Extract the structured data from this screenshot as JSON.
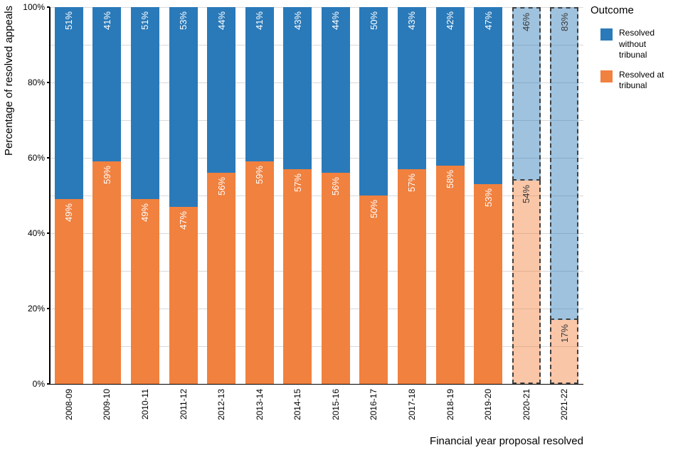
{
  "chart_data": {
    "type": "bar",
    "stacked": true,
    "title": "",
    "xlabel": "Financial year proposal resolved",
    "ylabel": "Percentage of resolved appeals",
    "legend_title": "Outcome",
    "legend_position": "right",
    "categories": [
      "2008-09",
      "2009-10",
      "2010-11",
      "2011-12",
      "2012-13",
      "2013-14",
      "2014-15",
      "2015-16",
      "2016-17",
      "2017-18",
      "2018-19",
      "2019-20",
      "2020-21",
      "2021-22"
    ],
    "series": [
      {
        "name": "Resolved without tribunal",
        "color": "#2a7ab9",
        "provisional_color": "rgba(42,122,185,0.45)",
        "values": [
          51,
          41,
          51,
          53,
          44,
          41,
          43,
          44,
          50,
          43,
          42,
          47,
          46,
          83
        ]
      },
      {
        "name": "Resolved at tribunal",
        "color": "#f1813f",
        "provisional_color": "rgba(241,129,63,0.45)",
        "values": [
          49,
          59,
          49,
          47,
          56,
          59,
          57,
          56,
          50,
          57,
          58,
          53,
          54,
          17
        ]
      }
    ],
    "provisional": [
      false,
      false,
      false,
      false,
      false,
      false,
      false,
      false,
      false,
      false,
      false,
      false,
      true,
      true
    ],
    "provisional_border_color": "#3f3f3f",
    "label_suffix": "%",
    "label_color": "#ffffff",
    "provisional_label_color": "#3a3a3a",
    "y_ticks": [
      {
        "value": 0,
        "label": "0%"
      },
      {
        "value": 20,
        "label": "20%"
      },
      {
        "value": 40,
        "label": "40%"
      },
      {
        "value": 60,
        "label": "60%"
      },
      {
        "value": 80,
        "label": "80%"
      },
      {
        "value": 100,
        "label": "100%"
      }
    ],
    "y_gridlines": [
      10,
      20,
      30,
      40,
      50,
      60,
      70,
      80,
      90,
      100
    ],
    "grid_color": "#d9d9d9",
    "ylim": [
      0,
      100
    ]
  }
}
